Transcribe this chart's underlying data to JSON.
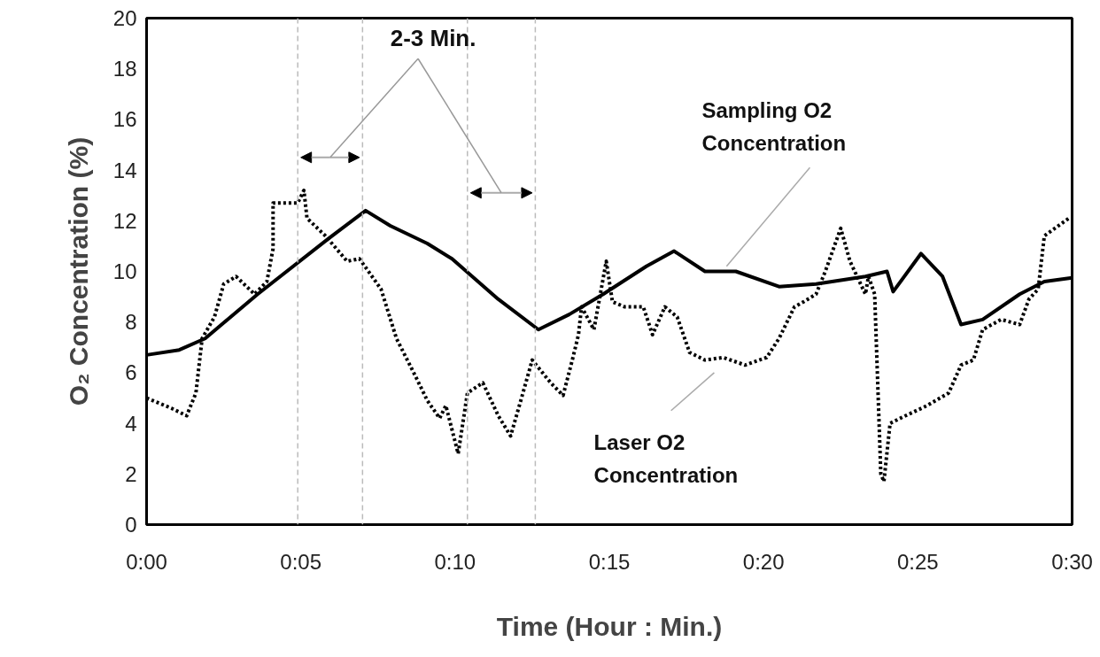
{
  "chart_data": {
    "type": "line",
    "xlabel": "Time (Hour : Min.)",
    "ylabel": "O₂ Concentration (%)",
    "xlim": [
      0,
      30
    ],
    "ylim": [
      0,
      20
    ],
    "xticks": [
      {
        "value": 0,
        "label": "0:00"
      },
      {
        "value": 5,
        "label": "0:05"
      },
      {
        "value": 10,
        "label": "0:10"
      },
      {
        "value": 15,
        "label": "0:15"
      },
      {
        "value": 20,
        "label": "0:20"
      },
      {
        "value": 25,
        "label": "0:25"
      },
      {
        "value": 30,
        "label": "0:30"
      }
    ],
    "yticks": [
      0,
      2,
      4,
      6,
      8,
      10,
      12,
      14,
      16,
      18,
      20
    ],
    "grid": false,
    "marker": "none",
    "series": [
      {
        "name": "Sampling O2 Concentration",
        "color": "#000000",
        "line_style": "solid",
        "x": [
          0,
          1.06,
          1.9,
          3.6,
          5.9,
          7.1,
          7.9,
          9.1,
          9.9,
          11.4,
          12.7,
          13.7,
          14.8,
          16.2,
          17.1,
          18.1,
          19.1,
          20.5,
          21.7,
          23.3,
          24.0,
          24.2,
          25.1,
          25.8,
          26.4,
          27.1,
          28.3,
          29.1,
          30
        ],
        "values": [
          6.7,
          6.9,
          7.35,
          9.1,
          11.3,
          12.4,
          11.8,
          11.1,
          10.5,
          8.9,
          7.7,
          8.3,
          9.1,
          10.2,
          10.8,
          10.0,
          10.0,
          9.4,
          9.5,
          9.8,
          10.0,
          9.2,
          10.7,
          9.8,
          7.9,
          8.1,
          9.1,
          9.6,
          9.75
        ]
      },
      {
        "name": "Laser O2 Concentration",
        "color": "#000000",
        "line_style": "dotted",
        "x": [
          0,
          0.8,
          1.3,
          1.6,
          1.8,
          2.2,
          2.5,
          2.9,
          3.5,
          3.9,
          4.1,
          4.1,
          4.9,
          5.1,
          5.2,
          5.8,
          6.5,
          6.9,
          7.6,
          8.1,
          8.7,
          9.1,
          9.5,
          9.7,
          10.1,
          10.4,
          10.9,
          11.4,
          11.8,
          12.2,
          12.5,
          13.1,
          13.5,
          13.8,
          14.0,
          14.1,
          14.5,
          14.9,
          15.1,
          15.5,
          16.1,
          16.4,
          16.8,
          17.2,
          17.6,
          18.1,
          18.7,
          19.4,
          20.1,
          20.5,
          21.0,
          21.3,
          21.7,
          22.0,
          22.5,
          22.8,
          23.3,
          23.4,
          23.6,
          23.8,
          23.9,
          24.1,
          24.6,
          25.3,
          26.0,
          26.4,
          26.8,
          27.1,
          27.7,
          28.3,
          28.6,
          28.9,
          29.1,
          29.9
        ],
        "values": [
          5.0,
          4.6,
          4.3,
          5.2,
          7.35,
          8.2,
          9.5,
          9.8,
          9.1,
          9.6,
          10.9,
          12.7,
          12.7,
          13.2,
          12.1,
          11.4,
          10.4,
          10.5,
          9.3,
          7.35,
          5.9,
          4.9,
          4.2,
          4.7,
          2.8,
          5.2,
          5.6,
          4.3,
          3.5,
          5.2,
          6.5,
          5.6,
          5.1,
          6.5,
          7.5,
          8.6,
          7.7,
          10.4,
          8.8,
          8.6,
          8.6,
          7.5,
          8.6,
          8.2,
          6.8,
          6.5,
          6.6,
          6.3,
          6.6,
          7.35,
          8.6,
          8.8,
          9.1,
          10.0,
          11.7,
          10.4,
          9.1,
          9.8,
          9.1,
          2.0,
          1.7,
          4.0,
          4.3,
          4.7,
          5.2,
          6.3,
          6.5,
          7.7,
          8.1,
          7.9,
          8.9,
          9.3,
          11.4,
          12.1
        ]
      }
    ],
    "ref_lines": [
      {
        "axis": "x",
        "value": 4.9,
        "color": "#bbbbbb",
        "line_style": "dashed"
      },
      {
        "axis": "x",
        "value": 7.0,
        "color": "#bbbbbb",
        "line_style": "dashed"
      },
      {
        "axis": "x",
        "value": 10.4,
        "color": "#bbbbbb",
        "line_style": "dashed"
      },
      {
        "axis": "x",
        "value": 12.6,
        "color": "#bbbbbb",
        "line_style": "dashed"
      }
    ],
    "annotations": [
      "2-3 Min."
    ]
  }
}
